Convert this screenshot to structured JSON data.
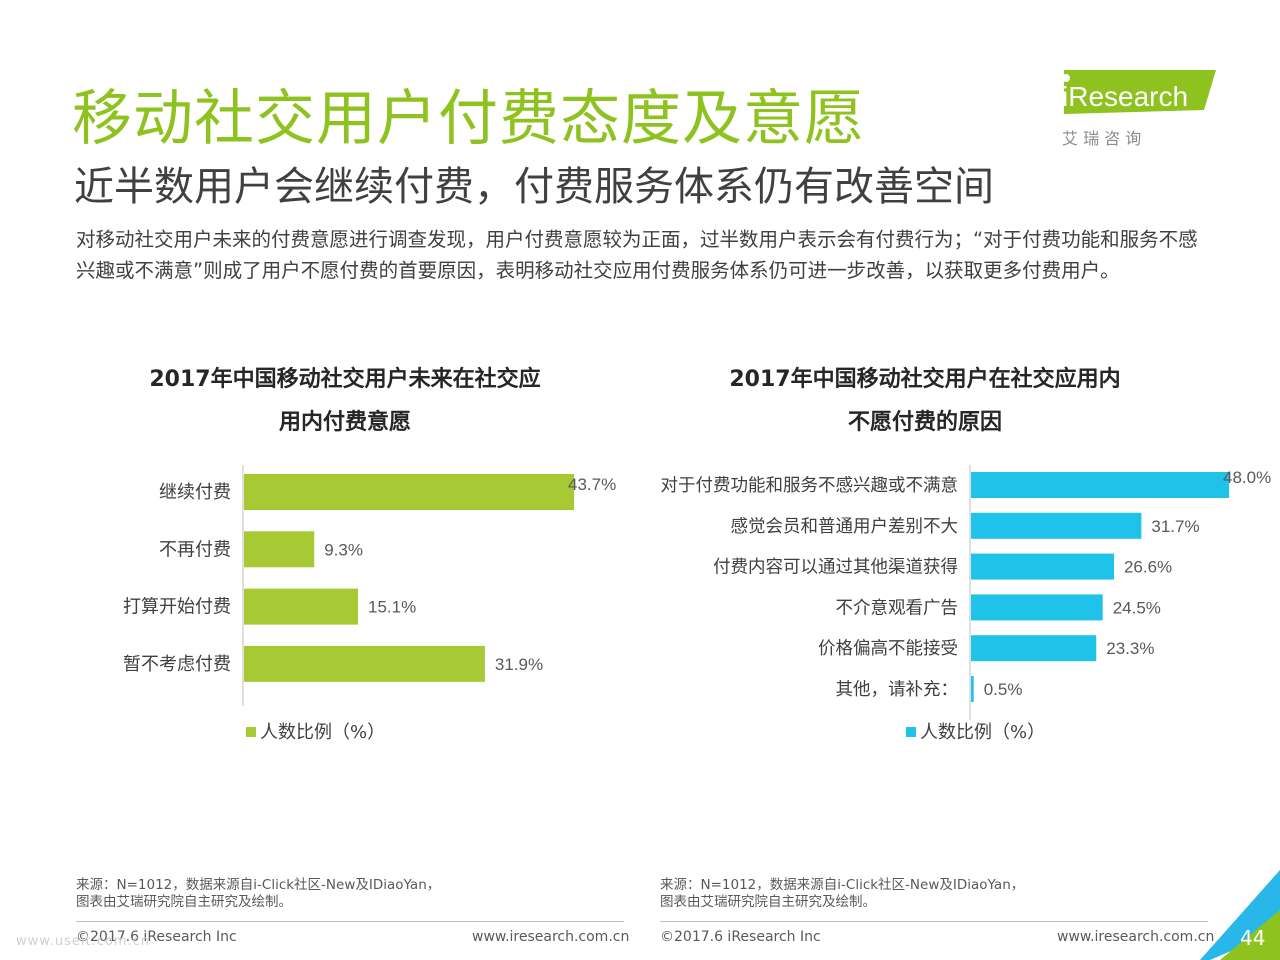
{
  "header": {
    "title": "移动社交用户付费态度及意愿",
    "subtitle": "近半数用户会继续付费，付费服务体系仍有改善空间",
    "description": "对移动社交用户未来的付费意愿进行调查发现，用户付费意愿较为正面，过半数用户表示会有付费行为；“对于付费功能和服务不感兴趣或不满意”则成了用户不愿付费的首要原因，表明移动社交应用付费服务体系仍可进一步改善，以获取更多付费用户。"
  },
  "logo": {
    "brand": "iResearch",
    "cn": "艾 瑞 咨 询",
    "colors": {
      "green": "#8dc21f",
      "text": "#8c8c8c"
    }
  },
  "chart_data": [
    {
      "type": "bar",
      "orientation": "horizontal",
      "title_line1": "2017年中国移动社交用户未来在社交应",
      "title_line2": "用内付费意愿",
      "categories": [
        "继续付费",
        "不再付费",
        "打算开始付费",
        "暂不考虑付费"
      ],
      "series": [
        {
          "name": "人数比例（%）",
          "values": [
            43.7,
            9.3,
            15.1,
            31.9
          ],
          "color": "#a7c934"
        }
      ],
      "value_labels": [
        "43.7%",
        "9.3%",
        "15.1%",
        "31.9%"
      ],
      "xlim": [
        0,
        43.7
      ],
      "legend": "bottom"
    },
    {
      "type": "bar",
      "orientation": "horizontal",
      "title_line1": "2017年中国移动社交用户在社交应用内",
      "title_line2": "不愿付费的原因",
      "categories": [
        "对于付费功能和服务不感兴趣或不满意",
        "感觉会员和普通用户差别不大",
        "付费内容可以通过其他渠道获得",
        "不介意观看广告",
        "价格偏高不能接受",
        "其他，请补充："
      ],
      "series": [
        {
          "name": "人数比例（%）",
          "values": [
            48.0,
            31.7,
            26.6,
            24.5,
            23.3,
            0.5
          ],
          "color": "#1fc3ea"
        }
      ],
      "value_labels": [
        "48.0%",
        "31.7%",
        "26.6%",
        "24.5%",
        "23.3%",
        "0.5%"
      ],
      "xlim": [
        0,
        48.0
      ],
      "legend": "bottom"
    }
  ],
  "footer": {
    "source_left_1": "来源：N=1012，数据来源自i-Click社区-New及IDiaoYan，",
    "source_left_2": "图表由艾瑞研究院自主研究及绘制。",
    "source_right_1": "来源：N=1012，数据来源自i-Click社区-New及IDiaoYan，",
    "source_right_2": "图表由艾瑞研究院自主研究及绘制。",
    "copyright_left": "©2017.6 iResearch Inc",
    "site_left": "www.iresearch.com.cn",
    "copyright_right": "©2017.6 iResearch Inc",
    "site_right": "www.iresearch.com.cn",
    "page_number": "44",
    "watermark": "www.useit.com.cn",
    "accent_colors": {
      "blue": "#29b6e8",
      "green": "#8dc21f"
    }
  }
}
